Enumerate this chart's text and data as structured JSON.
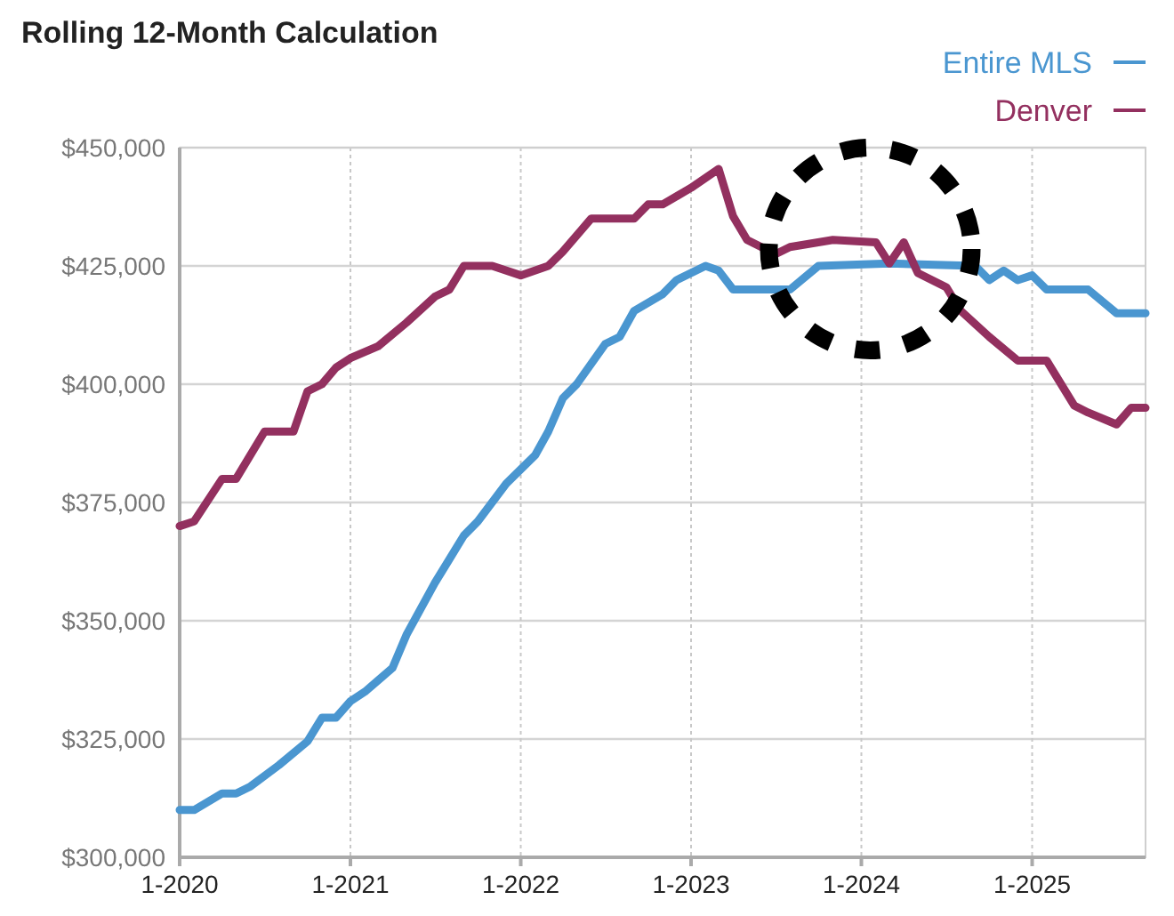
{
  "chart_data": {
    "type": "line",
    "title": "Rolling 12-Month Calculation",
    "xlim": [
      "2020-01",
      "2025-09"
    ],
    "xticks": [
      {
        "value": "2020-01",
        "label": "1-2020"
      },
      {
        "value": "2021-01",
        "label": "1-2021"
      },
      {
        "value": "2022-01",
        "label": "1-2022"
      },
      {
        "value": "2023-01",
        "label": "1-2023"
      },
      {
        "value": "2024-01",
        "label": "1-2024"
      },
      {
        "value": "2025-01",
        "label": "1-2025"
      }
    ],
    "ylim": [
      300000,
      450000
    ],
    "yticks": [
      {
        "value": 300000,
        "label": "$300,000"
      },
      {
        "value": 325000,
        "label": "$325,000"
      },
      {
        "value": 350000,
        "label": "$350,000"
      },
      {
        "value": 375000,
        "label": "$375,000"
      },
      {
        "value": 400000,
        "label": "$400,000"
      },
      {
        "value": 425000,
        "label": "$425,000"
      },
      {
        "value": 450000,
        "label": "$450,000"
      }
    ],
    "grid": true,
    "legend": "top right",
    "marker": "none",
    "line_style": "solid",
    "series": [
      {
        "name": "Entire MLS",
        "color": "#4a96d0",
        "x": [
          "2020-01",
          "2020-02",
          "2020-04",
          "2020-05",
          "2020-06",
          "2020-08",
          "2020-10",
          "2020-11",
          "2020-12",
          "2021-01",
          "2021-02",
          "2021-04",
          "2021-05",
          "2021-07",
          "2021-09",
          "2021-10",
          "2021-12",
          "2022-02",
          "2022-03",
          "2022-04",
          "2022-05",
          "2022-07",
          "2022-08",
          "2022-09",
          "2022-11",
          "2022-12",
          "2023-02",
          "2023-03",
          "2023-04",
          "2023-08",
          "2023-10",
          "2024-03",
          "2024-09",
          "2024-10",
          "2024-11",
          "2024-12",
          "2025-01",
          "2025-02",
          "2025-05",
          "2025-07",
          "2025-09"
        ],
        "values": [
          310000,
          310000,
          313500,
          313500,
          315000,
          319500,
          324500,
          329500,
          329500,
          333000,
          335000,
          340000,
          347000,
          358000,
          368000,
          371000,
          379000,
          385000,
          390000,
          397000,
          400000,
          408500,
          410000,
          415500,
          419000,
          422000,
          425000,
          424000,
          420000,
          420000,
          425000,
          425500,
          425000,
          422000,
          424000,
          422000,
          423000,
          420000,
          420000,
          415000,
          415000
        ]
      },
      {
        "name": "Denver",
        "color": "#93305f",
        "x": [
          "2020-01",
          "2020-02",
          "2020-04",
          "2020-05",
          "2020-07",
          "2020-09",
          "2020-10",
          "2020-11",
          "2020-12",
          "2021-01",
          "2021-03",
          "2021-05",
          "2021-07",
          "2021-08",
          "2021-09",
          "2021-11",
          "2022-01",
          "2022-03",
          "2022-04",
          "2022-06",
          "2022-09",
          "2022-10",
          "2022-11",
          "2023-01",
          "2023-03",
          "2023-04",
          "2023-05",
          "2023-07",
          "2023-08",
          "2023-11",
          "2024-02",
          "2024-03",
          "2024-04",
          "2024-05",
          "2024-07",
          "2024-08",
          "2024-10",
          "2024-12",
          "2025-02",
          "2025-04",
          "2025-05",
          "2025-07",
          "2025-08",
          "2025-09"
        ],
        "values": [
          370000,
          371000,
          380000,
          380000,
          390000,
          390000,
          398500,
          400000,
          403500,
          405500,
          408000,
          413000,
          418500,
          420000,
          425000,
          425000,
          423000,
          425000,
          428000,
          435000,
          435000,
          438000,
          438000,
          441500,
          445500,
          435500,
          430500,
          427500,
          429000,
          430500,
          430000,
          425500,
          430000,
          423500,
          420500,
          415500,
          410000,
          405000,
          405000,
          395500,
          394000,
          391500,
          395000,
          395000
        ]
      }
    ]
  }
}
